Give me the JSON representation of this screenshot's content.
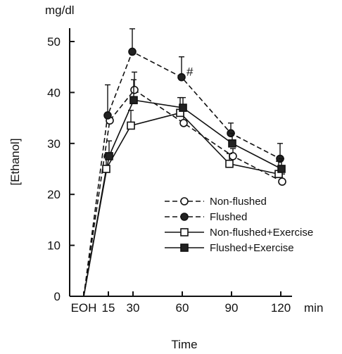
{
  "chart_data": {
    "type": "line",
    "title": "",
    "ylabel": "[Ethanol]",
    "yunit": "mg/dl",
    "xlabel": "Time",
    "xunit": "min",
    "x_tick_labels": [
      "EOH",
      "15",
      "30",
      "60",
      "90",
      "120"
    ],
    "x": [
      0,
      15,
      30,
      60,
      90,
      120
    ],
    "ylim": [
      0,
      50
    ],
    "yticks": [
      0,
      10,
      20,
      30,
      40,
      50
    ],
    "legend_position": "lower-right",
    "annotation": "#",
    "annotation_at": {
      "x": 60,
      "y": 43
    },
    "series": [
      {
        "name": "Non-flushed",
        "marker": "open-circle",
        "line": "dashed",
        "values": [
          0,
          34.5,
          40.5,
          34,
          27.5,
          22.5
        ],
        "errors": [
          0,
          0,
          3.5,
          2.5,
          1.5,
          1.5
        ]
      },
      {
        "name": "Flushed",
        "marker": "filled-circle",
        "line": "dashed",
        "values": [
          0,
          35.5,
          48,
          43,
          32,
          27
        ],
        "errors": [
          0,
          6,
          4.5,
          4,
          2,
          3
        ]
      },
      {
        "name": "Non-flushed+Exercise",
        "marker": "open-square",
        "line": "solid",
        "values": [
          0,
          25,
          33.5,
          36,
          26,
          24
        ],
        "errors": [
          0,
          2.5,
          3,
          3,
          2,
          2.5
        ]
      },
      {
        "name": "Flushed+Exercise",
        "marker": "filled-square",
        "line": "solid",
        "values": [
          0,
          27.5,
          38.5,
          37,
          30,
          25
        ],
        "errors": [
          0,
          3,
          4,
          2,
          2,
          2
        ]
      }
    ]
  }
}
